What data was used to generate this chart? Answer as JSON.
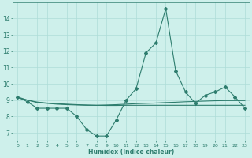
{
  "xlabel": "Humidex (Indice chaleur)",
  "x": [
    0,
    1,
    2,
    3,
    4,
    5,
    6,
    7,
    8,
    9,
    10,
    11,
    12,
    13,
    14,
    15,
    16,
    17,
    18,
    19,
    20,
    21,
    22,
    23
  ],
  "y_main": [
    9.2,
    8.9,
    8.5,
    8.5,
    8.5,
    8.5,
    8.0,
    7.2,
    6.8,
    6.8,
    7.8,
    9.0,
    9.7,
    11.9,
    12.5,
    14.6,
    10.8,
    9.5,
    8.8,
    9.3,
    9.5,
    9.8,
    9.2,
    8.5
  ],
  "y_line1": [
    9.2,
    9.0,
    8.85,
    8.8,
    8.75,
    8.72,
    8.7,
    8.68,
    8.68,
    8.7,
    8.72,
    8.75,
    8.78,
    8.8,
    8.82,
    8.85,
    8.87,
    8.9,
    8.92,
    8.94,
    8.96,
    8.97,
    8.97,
    8.97
  ],
  "y_line2": [
    9.15,
    9.0,
    8.88,
    8.82,
    8.78,
    8.75,
    8.72,
    8.7,
    8.68,
    8.67,
    8.67,
    8.68,
    8.68,
    8.68,
    8.68,
    8.68,
    8.68,
    8.68,
    8.68,
    8.68,
    8.68,
    8.68,
    8.68,
    8.68
  ],
  "color": "#2e7d6e",
  "bg_color": "#cef0eb",
  "grid_color": "#aeddd8",
  "ylim": [
    6.5,
    15.0
  ],
  "yticks": [
    7,
    8,
    9,
    10,
    11,
    12,
    13,
    14
  ],
  "xlim": [
    -0.5,
    23.5
  ],
  "figsize": [
    3.2,
    2.0
  ],
  "dpi": 100
}
